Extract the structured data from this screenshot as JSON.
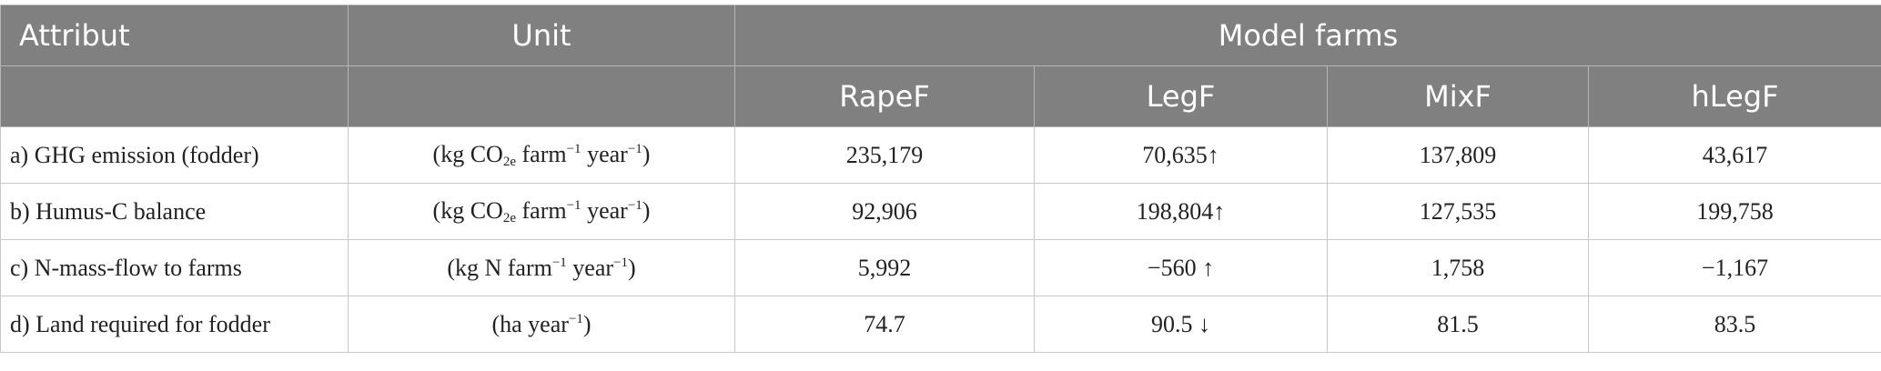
{
  "table": {
    "header": {
      "attribute": "Attribut",
      "unit": "Unit",
      "group": "Model farms",
      "columns": [
        "RapeF",
        "LegF",
        "MixF",
        "hLegF"
      ]
    },
    "rows": [
      {
        "label": "a) GHG emission (fodder)",
        "unit": [
          "(kg CO",
          "2e",
          " farm",
          "−1",
          " year",
          "−1",
          ")"
        ],
        "values": [
          "235,179",
          "70,635↑",
          "137,809",
          "43,617"
        ]
      },
      {
        "label": "b) Humus-C balance",
        "unit": [
          "(kg CO",
          "2e",
          " farm",
          "−1",
          " year",
          "−1",
          ")"
        ],
        "values": [
          "92,906",
          "198,804↑",
          "127,535",
          "199,758"
        ]
      },
      {
        "label": "c) N-mass-flow to farms",
        "unit": [
          "(kg N farm",
          "−1",
          " year",
          "−1",
          ")"
        ],
        "values": [
          "5,992",
          "−560 ↑",
          "1,758",
          "−1,167"
        ]
      },
      {
        "label": "d) Land required for fodder",
        "unit": [
          "(ha year",
          "−1",
          ")"
        ],
        "values": [
          "74.7",
          "90.5 ↓",
          "81.5",
          "83.5"
        ]
      }
    ]
  }
}
